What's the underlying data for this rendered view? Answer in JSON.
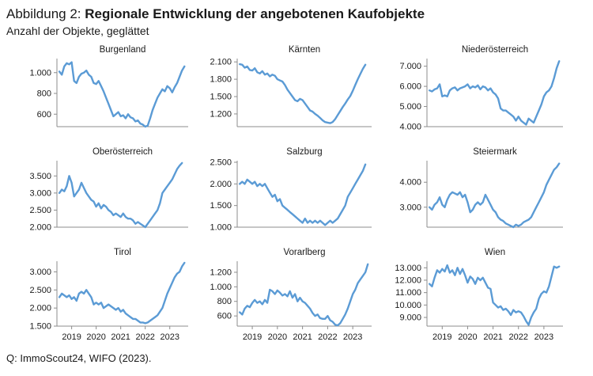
{
  "figure": {
    "label": "Abbildung 2:",
    "title": "Regionale Entwicklung der angebotenen Kaufobjekte",
    "subtitle": "Anzahl der Objekte, geglättet",
    "source": "Q: ImmoScout24, WIFO (2023)."
  },
  "colors": {
    "line": "#5b9bd5",
    "axis": "#8c8c8c"
  },
  "chart_data": [
    {
      "type": "line",
      "title": "Burgenland",
      "yticks": [
        600,
        800,
        1000
      ],
      "ytick_labels": [
        "600",
        "800",
        "1.000"
      ],
      "ylim": [
        480,
        1120
      ],
      "x": [
        2018.5,
        2018.6,
        2018.7,
        2018.8,
        2018.9,
        2019.0,
        2019.1,
        2019.2,
        2019.3,
        2019.4,
        2019.5,
        2019.6,
        2019.7,
        2019.8,
        2019.9,
        2020.0,
        2020.1,
        2020.2,
        2020.3,
        2020.4,
        2020.5,
        2020.6,
        2020.7,
        2020.8,
        2020.9,
        2021.0,
        2021.1,
        2021.2,
        2021.3,
        2021.4,
        2021.5,
        2021.6,
        2021.7,
        2021.8,
        2021.9,
        2022.0,
        2022.1,
        2022.2,
        2022.3,
        2022.4,
        2022.5,
        2022.6,
        2022.7,
        2022.8,
        2022.9,
        2023.0,
        2023.1,
        2023.2,
        2023.3,
        2023.4,
        2023.5,
        2023.6
      ],
      "values": [
        1010,
        980,
        1060,
        1090,
        1080,
        1100,
        920,
        900,
        960,
        990,
        1000,
        1020,
        980,
        960,
        900,
        890,
        920,
        870,
        820,
        760,
        700,
        640,
        580,
        600,
        620,
        580,
        590,
        560,
        600,
        570,
        560,
        530,
        540,
        510,
        500,
        480,
        490,
        560,
        640,
        700,
        760,
        800,
        840,
        820,
        870,
        850,
        810,
        860,
        900,
        960,
        1020,
        1060
      ]
    },
    {
      "type": "line",
      "title": "Kärnten",
      "yticks": [
        1200,
        1500,
        1800,
        2100
      ],
      "ytick_labels": [
        "1.200",
        "1.500",
        "1.800",
        "2.100"
      ],
      "ylim": [
        980,
        2130
      ],
      "x": [
        2018.5,
        2018.6,
        2018.7,
        2018.8,
        2018.9,
        2019.0,
        2019.1,
        2019.2,
        2019.3,
        2019.4,
        2019.5,
        2019.6,
        2019.7,
        2019.8,
        2019.9,
        2020.0,
        2020.1,
        2020.2,
        2020.3,
        2020.4,
        2020.5,
        2020.6,
        2020.7,
        2020.8,
        2020.9,
        2021.0,
        2021.1,
        2021.2,
        2021.3,
        2021.4,
        2021.5,
        2021.6,
        2021.7,
        2021.8,
        2021.9,
        2022.0,
        2022.1,
        2022.2,
        2022.3,
        2022.4,
        2022.5,
        2022.6,
        2022.7,
        2022.8,
        2022.9,
        2023.0,
        2023.1,
        2023.2,
        2023.3,
        2023.4,
        2023.5
      ],
      "values": [
        2060,
        2050,
        2000,
        2020,
        1960,
        1950,
        1990,
        1920,
        1900,
        1940,
        1880,
        1900,
        1850,
        1880,
        1860,
        1800,
        1780,
        1760,
        1700,
        1620,
        1560,
        1500,
        1440,
        1420,
        1460,
        1440,
        1380,
        1320,
        1260,
        1240,
        1200,
        1170,
        1130,
        1090,
        1060,
        1050,
        1040,
        1060,
        1110,
        1180,
        1250,
        1320,
        1380,
        1450,
        1510,
        1600,
        1700,
        1800,
        1890,
        1980,
        2050
      ]
    },
    {
      "type": "line",
      "title": "Niederösterreich",
      "yticks": [
        4000,
        5000,
        6000,
        7000
      ],
      "ytick_labels": [
        "4.000",
        "5.000",
        "6.000",
        "7.000"
      ],
      "ylim": [
        4000,
        7300
      ],
      "x": [
        2018.5,
        2018.6,
        2018.7,
        2018.8,
        2018.9,
        2019.0,
        2019.1,
        2019.2,
        2019.3,
        2019.4,
        2019.5,
        2019.6,
        2019.7,
        2019.8,
        2019.9,
        2020.0,
        2020.1,
        2020.2,
        2020.3,
        2020.4,
        2020.5,
        2020.6,
        2020.7,
        2020.8,
        2020.9,
        2021.0,
        2021.1,
        2021.2,
        2021.3,
        2021.4,
        2021.5,
        2021.6,
        2021.7,
        2021.8,
        2021.9,
        2022.0,
        2022.1,
        2022.2,
        2022.3,
        2022.4,
        2022.5,
        2022.6,
        2022.7,
        2022.8,
        2022.9,
        2023.0,
        2023.1,
        2023.2,
        2023.3,
        2023.4,
        2023.5,
        2023.6
      ],
      "values": [
        5800,
        5750,
        5850,
        5900,
        6100,
        5500,
        5550,
        5500,
        5800,
        5900,
        5950,
        5800,
        5900,
        5950,
        6000,
        6100,
        5900,
        6000,
        5950,
        6050,
        5850,
        6000,
        5950,
        5800,
        5900,
        5700,
        5600,
        5400,
        4900,
        4800,
        4800,
        4700,
        4600,
        4500,
        4300,
        4500,
        4300,
        4200,
        4100,
        4400,
        4300,
        4200,
        4500,
        4800,
        5100,
        5500,
        5700,
        5800,
        6000,
        6400,
        6900,
        7250
      ]
    },
    {
      "type": "line",
      "title": "Oberösterreich",
      "yticks": [
        2000,
        2500,
        3000,
        3500
      ],
      "ytick_labels": [
        "2.000",
        "2.500",
        "3.000",
        "3.500"
      ],
      "ylim": [
        2000,
        3900
      ],
      "x": [
        2018.5,
        2018.6,
        2018.7,
        2018.8,
        2018.9,
        2019.0,
        2019.1,
        2019.2,
        2019.3,
        2019.4,
        2019.5,
        2019.6,
        2019.7,
        2019.8,
        2019.9,
        2020.0,
        2020.1,
        2020.2,
        2020.3,
        2020.4,
        2020.5,
        2020.6,
        2020.7,
        2020.8,
        2020.9,
        2021.0,
        2021.1,
        2021.2,
        2021.3,
        2021.4,
        2021.5,
        2021.6,
        2021.7,
        2021.8,
        2021.9,
        2022.0,
        2022.1,
        2022.2,
        2022.3,
        2022.4,
        2022.5,
        2022.6,
        2022.7,
        2022.8,
        2022.9,
        2023.0,
        2023.1,
        2023.2,
        2023.3,
        2023.4,
        2023.5
      ],
      "values": [
        3000,
        3100,
        3050,
        3200,
        3500,
        3300,
        2900,
        3000,
        3100,
        3300,
        3150,
        3000,
        2900,
        2800,
        2750,
        2600,
        2700,
        2550,
        2650,
        2600,
        2500,
        2450,
        2350,
        2400,
        2350,
        2300,
        2400,
        2300,
        2250,
        2250,
        2200,
        2100,
        2150,
        2100,
        2050,
        2000,
        2100,
        2200,
        2300,
        2400,
        2500,
        2700,
        3000,
        3100,
        3200,
        3300,
        3400,
        3550,
        3700,
        3800,
        3880
      ]
    },
    {
      "type": "line",
      "title": "Salzburg",
      "yticks": [
        1000,
        1500,
        2000,
        2500
      ],
      "ytick_labels": [
        "1.000",
        "1.500",
        "2.000",
        "2.500"
      ],
      "ylim": [
        1000,
        2500
      ],
      "x": [
        2018.5,
        2018.6,
        2018.7,
        2018.8,
        2018.9,
        2019.0,
        2019.1,
        2019.2,
        2019.3,
        2019.4,
        2019.5,
        2019.6,
        2019.7,
        2019.8,
        2019.9,
        2020.0,
        2020.1,
        2020.2,
        2020.3,
        2020.4,
        2020.5,
        2020.6,
        2020.7,
        2020.8,
        2020.9,
        2021.0,
        2021.1,
        2021.2,
        2021.3,
        2021.4,
        2021.5,
        2021.6,
        2021.7,
        2021.8,
        2021.9,
        2022.0,
        2022.1,
        2022.2,
        2022.3,
        2022.4,
        2022.5,
        2022.6,
        2022.7,
        2022.8,
        2022.9,
        2023.0,
        2023.1,
        2023.2,
        2023.3,
        2023.4,
        2023.5
      ],
      "values": [
        2000,
        2050,
        2000,
        2100,
        2050,
        2000,
        2050,
        1950,
        2000,
        1950,
        2000,
        1900,
        1800,
        1700,
        1750,
        1600,
        1650,
        1500,
        1450,
        1400,
        1350,
        1300,
        1250,
        1200,
        1150,
        1100,
        1200,
        1100,
        1150,
        1100,
        1150,
        1100,
        1150,
        1100,
        1050,
        1100,
        1150,
        1100,
        1150,
        1200,
        1300,
        1400,
        1500,
        1700,
        1800,
        1900,
        2000,
        2100,
        2200,
        2300,
        2450
      ]
    },
    {
      "type": "line",
      "title": "Steiermark",
      "yticks": [
        3000,
        4000
      ],
      "ytick_labels": [
        "3.000",
        "4.000"
      ],
      "ylim": [
        2200,
        4800
      ],
      "x": [
        2018.5,
        2018.6,
        2018.7,
        2018.8,
        2018.9,
        2019.0,
        2019.1,
        2019.2,
        2019.3,
        2019.4,
        2019.5,
        2019.6,
        2019.7,
        2019.8,
        2019.9,
        2020.0,
        2020.1,
        2020.2,
        2020.3,
        2020.4,
        2020.5,
        2020.6,
        2020.7,
        2020.8,
        2020.9,
        2021.0,
        2021.1,
        2021.2,
        2021.3,
        2021.4,
        2021.5,
        2021.6,
        2021.7,
        2021.8,
        2021.9,
        2022.0,
        2022.1,
        2022.2,
        2022.3,
        2022.4,
        2022.5,
        2022.6,
        2022.7,
        2022.8,
        2022.9,
        2023.0,
        2023.1,
        2023.2,
        2023.3,
        2023.4,
        2023.5,
        2023.6
      ],
      "values": [
        3000,
        2900,
        3100,
        3200,
        3400,
        3100,
        3000,
        3300,
        3500,
        3600,
        3550,
        3500,
        3600,
        3400,
        3500,
        3200,
        2800,
        2900,
        3100,
        3200,
        3100,
        3200,
        3500,
        3300,
        3100,
        2900,
        2800,
        2600,
        2500,
        2450,
        2350,
        2300,
        2250,
        2200,
        2300,
        2250,
        2300,
        2400,
        2450,
        2500,
        2600,
        2800,
        3000,
        3200,
        3400,
        3600,
        3900,
        4100,
        4300,
        4500,
        4600,
        4750
      ]
    },
    {
      "type": "line",
      "title": "Tirol",
      "yticks": [
        1500,
        2000,
        2500,
        3000
      ],
      "ytick_labels": [
        "1.500",
        "2.000",
        "2.500",
        "3.000"
      ],
      "ylim": [
        1500,
        3250
      ],
      "x": [
        2018.5,
        2018.6,
        2018.7,
        2018.8,
        2018.9,
        2019.0,
        2019.1,
        2019.2,
        2019.3,
        2019.4,
        2019.5,
        2019.6,
        2019.7,
        2019.8,
        2019.9,
        2020.0,
        2020.1,
        2020.2,
        2020.3,
        2020.4,
        2020.5,
        2020.6,
        2020.7,
        2020.8,
        2020.9,
        2021.0,
        2021.1,
        2021.2,
        2021.3,
        2021.4,
        2021.5,
        2021.6,
        2021.7,
        2021.8,
        2021.9,
        2022.0,
        2022.1,
        2022.2,
        2022.3,
        2022.4,
        2022.5,
        2022.6,
        2022.7,
        2022.8,
        2022.9,
        2023.0,
        2023.1,
        2023.2,
        2023.3,
        2023.4,
        2023.5,
        2023.6
      ],
      "values": [
        2300,
        2400,
        2350,
        2300,
        2350,
        2250,
        2300,
        2200,
        2400,
        2450,
        2400,
        2500,
        2400,
        2300,
        2100,
        2150,
        2100,
        2150,
        2000,
        2050,
        2100,
        2050,
        2000,
        1950,
        2000,
        1900,
        1950,
        1850,
        1800,
        1750,
        1700,
        1700,
        1650,
        1600,
        1600,
        1580,
        1600,
        1650,
        1700,
        1750,
        1800,
        1900,
        2000,
        2200,
        2400,
        2550,
        2700,
        2850,
        2950,
        3000,
        3150,
        3250
      ]
    },
    {
      "type": "line",
      "title": "Vorarlberg",
      "yticks": [
        600,
        800,
        1000,
        1200
      ],
      "ytick_labels": [
        "600",
        "800",
        "1.000",
        "1.200"
      ],
      "ylim": [
        460,
        1330
      ],
      "x": [
        2018.5,
        2018.6,
        2018.7,
        2018.8,
        2018.9,
        2019.0,
        2019.1,
        2019.2,
        2019.3,
        2019.4,
        2019.5,
        2019.6,
        2019.7,
        2019.8,
        2019.9,
        2020.0,
        2020.1,
        2020.2,
        2020.3,
        2020.4,
        2020.5,
        2020.6,
        2020.7,
        2020.8,
        2020.9,
        2021.0,
        2021.1,
        2021.2,
        2021.3,
        2021.4,
        2021.5,
        2021.6,
        2021.7,
        2021.8,
        2021.9,
        2022.0,
        2022.1,
        2022.2,
        2022.3,
        2022.4,
        2022.5,
        2022.6,
        2022.7,
        2022.8,
        2022.9,
        2023.0,
        2023.1,
        2023.2,
        2023.3,
        2023.4,
        2023.5,
        2023.6
      ],
      "values": [
        650,
        620,
        700,
        740,
        720,
        780,
        820,
        780,
        800,
        760,
        820,
        780,
        960,
        940,
        900,
        950,
        920,
        880,
        900,
        870,
        940,
        850,
        900,
        800,
        850,
        800,
        780,
        740,
        700,
        640,
        600,
        620,
        570,
        560,
        560,
        600,
        540,
        520,
        480,
        470,
        500,
        560,
        620,
        700,
        800,
        900,
        960,
        1050,
        1100,
        1150,
        1200,
        1310
      ]
    },
    {
      "type": "line",
      "title": "Wien",
      "yticks": [
        9000,
        10000,
        11000,
        12000,
        13000
      ],
      "ytick_labels": [
        "9.000",
        "10.000",
        "11.000",
        "12.000",
        "13.000"
      ],
      "ylim": [
        8300,
        13400
      ],
      "x": [
        2018.5,
        2018.6,
        2018.7,
        2018.8,
        2018.9,
        2019.0,
        2019.1,
        2019.2,
        2019.3,
        2019.4,
        2019.5,
        2019.6,
        2019.7,
        2019.8,
        2019.9,
        2020.0,
        2020.1,
        2020.2,
        2020.3,
        2020.4,
        2020.5,
        2020.6,
        2020.7,
        2020.8,
        2020.9,
        2021.0,
        2021.1,
        2021.2,
        2021.3,
        2021.4,
        2021.5,
        2021.6,
        2021.7,
        2021.8,
        2021.9,
        2022.0,
        2022.1,
        2022.2,
        2022.3,
        2022.4,
        2022.5,
        2022.6,
        2022.7,
        2022.8,
        2022.9,
        2023.0,
        2023.1,
        2023.2,
        2023.3,
        2023.4,
        2023.5,
        2023.6
      ],
      "values": [
        11700,
        11500,
        12200,
        12800,
        12600,
        12900,
        12700,
        13200,
        12600,
        12800,
        12400,
        13000,
        12500,
        12900,
        12400,
        11800,
        12300,
        12100,
        11700,
        12200,
        12000,
        12200,
        11800,
        11400,
        11300,
        10200,
        10000,
        9800,
        9900,
        9600,
        9700,
        9500,
        9200,
        9600,
        9400,
        9500,
        9400,
        9100,
        8700,
        8400,
        9000,
        9400,
        9700,
        10500,
        10900,
        11100,
        11000,
        11500,
        12300,
        13100,
        13000,
        13100
      ]
    }
  ],
  "x_axis": {
    "range": [
      2018.4,
      2023.75
    ],
    "ticks": [
      2019,
      2020,
      2021,
      2022,
      2023
    ],
    "tick_labels": [
      "2019",
      "2020",
      "2021",
      "2022",
      "2023"
    ]
  }
}
